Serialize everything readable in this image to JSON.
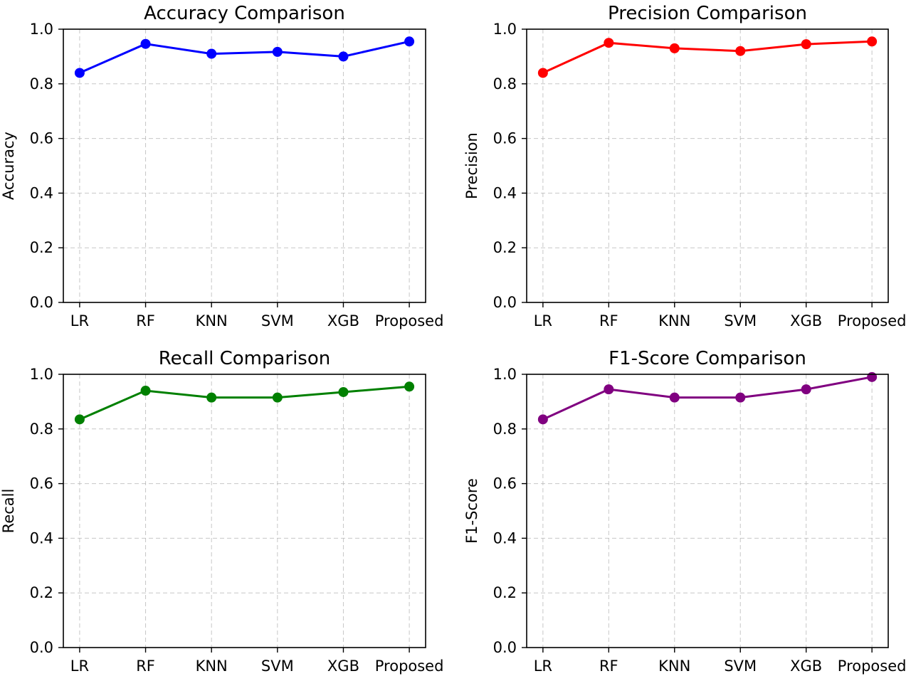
{
  "chart_data": [
    {
      "type": "line",
      "title": "Accuracy Comparison",
      "xlabel": "",
      "ylabel": "Accuracy",
      "categories": [
        "LR",
        "RF",
        "KNN",
        "SVM",
        "XGB",
        "Proposed"
      ],
      "values": [
        0.84,
        0.946,
        0.91,
        0.917,
        0.9,
        0.955
      ],
      "color": "#0000ff",
      "ylim": [
        0.0,
        1.0
      ],
      "yticks": [
        "0.0",
        "0.2",
        "0.4",
        "0.6",
        "0.8",
        "1.0"
      ],
      "grid": true
    },
    {
      "type": "line",
      "title": "Precision Comparison",
      "xlabel": "",
      "ylabel": "Precision",
      "categories": [
        "LR",
        "RF",
        "KNN",
        "SVM",
        "XGB",
        "Proposed"
      ],
      "values": [
        0.84,
        0.95,
        0.93,
        0.92,
        0.945,
        0.955
      ],
      "color": "#ff0000",
      "ylim": [
        0.0,
        1.0
      ],
      "yticks": [
        "0.0",
        "0.2",
        "0.4",
        "0.6",
        "0.8",
        "1.0"
      ],
      "grid": true
    },
    {
      "type": "line",
      "title": "Recall Comparison",
      "xlabel": "",
      "ylabel": "Recall",
      "categories": [
        "LR",
        "RF",
        "KNN",
        "SVM",
        "XGB",
        "Proposed"
      ],
      "values": [
        0.835,
        0.94,
        0.915,
        0.915,
        0.935,
        0.955
      ],
      "color": "#008000",
      "ylim": [
        0.0,
        1.0
      ],
      "yticks": [
        "0.0",
        "0.2",
        "0.4",
        "0.6",
        "0.8",
        "1.0"
      ],
      "grid": true
    },
    {
      "type": "line",
      "title": "F1-Score Comparison",
      "xlabel": "",
      "ylabel": "F1-Score",
      "categories": [
        "LR",
        "RF",
        "KNN",
        "SVM",
        "XGB",
        "Proposed"
      ],
      "values": [
        0.835,
        0.945,
        0.915,
        0.915,
        0.945,
        0.99
      ],
      "color": "#800080",
      "ylim": [
        0.0,
        1.0
      ],
      "yticks": [
        "0.0",
        "0.2",
        "0.4",
        "0.6",
        "0.8",
        "1.0"
      ],
      "grid": true
    }
  ]
}
